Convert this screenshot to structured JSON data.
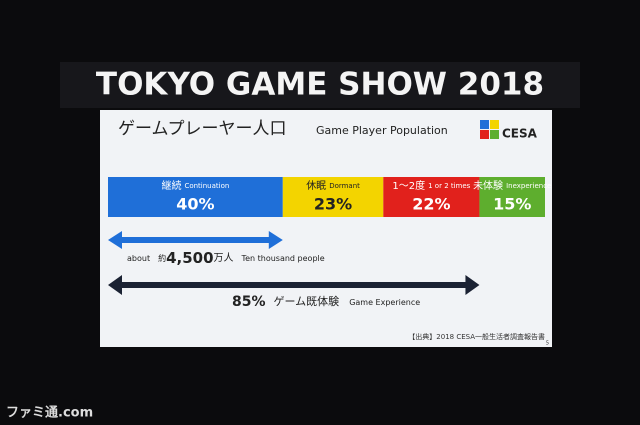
{
  "header": {
    "title": "TOKYO GAME SHOW 2018"
  },
  "chart_data": {
    "type": "stacked-bar",
    "title": "ゲームプレーヤー人口",
    "subtitle": "Game Player Population",
    "logo": "CESA",
    "xlim": [
      0,
      100
    ],
    "series": [
      {
        "name": "継続",
        "name_en": "Continuation",
        "color": "#1f6fd8",
        "text_color": "#ffffff",
        "values": [
          40
        ],
        "value_labels": [
          "40%"
        ]
      },
      {
        "name": "休眠",
        "name_en": "Dormant",
        "color": "#f3d400",
        "text_color": "#222222",
        "values": [
          23
        ],
        "value_labels": [
          "23%"
        ]
      },
      {
        "name": "1〜2度",
        "name_en": "1 or 2 times",
        "color": "#e1211c",
        "text_color": "#ffffff",
        "values": [
          22
        ],
        "value_labels": [
          "22%"
        ]
      },
      {
        "name": "未体験",
        "name_en": "Inexperience",
        "color": "#5eae2e",
        "text_color": "#ffffff",
        "values": [
          15
        ],
        "value_labels": [
          "15%"
        ]
      }
    ],
    "continuation_note": {
      "prefix_en": "about",
      "prefix": "約",
      "value": 4500,
      "value_label": "4,500",
      "unit": "万人",
      "unit_en": "Ten thousand people"
    },
    "experience": {
      "value": 85,
      "value_label": "85%",
      "text": "ゲーム既体験",
      "text_en": "Game Experience"
    },
    "source": "【出典】2018 CESA一般生活者調査報告書",
    "page": "5"
  },
  "watermark": "ファミ通.com"
}
